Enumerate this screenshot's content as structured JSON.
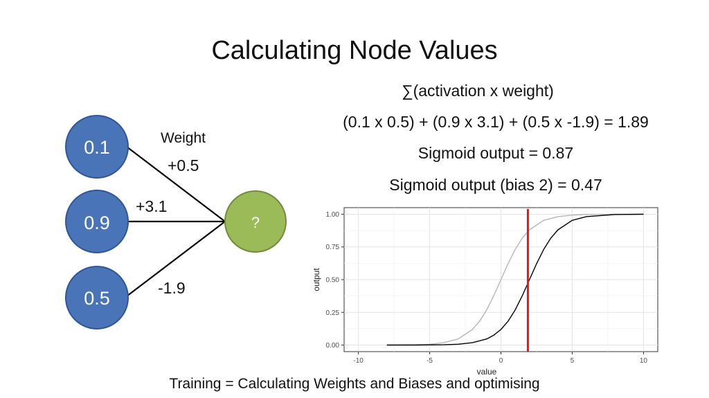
{
  "title": "Calculating Node Values",
  "formula": {
    "line1": "∑(activation x weight)",
    "line2": "(0.1 x 0.5) + (0.9 x 3.1) + (0.5 x -1.9) = 1.89",
    "line3": "Sigmoid output = 0.87",
    "line4": "Sigmoid output (bias 2) = 0.47"
  },
  "network": {
    "inputs": [
      "0.1",
      "0.9",
      "0.5"
    ],
    "output": "?",
    "weight_heading": "Weight",
    "weights": [
      "+0.5",
      "+3.1",
      "-1.9"
    ],
    "colors": {
      "input": "#4a74b8",
      "output": "#9bbb59"
    }
  },
  "caption": "Training = Calculating Weights and Biases and optimising",
  "chart_data": {
    "type": "line",
    "xlabel": "value",
    "ylabel": "output",
    "xlim": [
      -11,
      11
    ],
    "ylim": [
      -0.05,
      1.05
    ],
    "xticks": [
      -10,
      -5,
      0,
      5,
      10
    ],
    "yticks": [
      0.0,
      0.25,
      0.5,
      0.75,
      1.0
    ],
    "ytick_labels": [
      "0.00",
      "0.25",
      "0.50",
      "0.75",
      "1.00"
    ],
    "grid": true,
    "series": [
      {
        "color": "#b5b5b5",
        "x": [
          -8,
          -6,
          -5,
          -4,
          -3,
          -2,
          -1.5,
          -1,
          -0.5,
          0,
          0.5,
          1,
          1.5,
          2,
          3,
          4,
          5,
          6,
          8,
          10
        ],
        "y": [
          0.0003,
          0.0025,
          0.0067,
          0.018,
          0.047,
          0.119,
          0.182,
          0.269,
          0.378,
          0.5,
          0.622,
          0.731,
          0.818,
          0.881,
          0.953,
          0.982,
          0.993,
          0.998,
          0.9997,
          1.0
        ]
      },
      {
        "color": "#000000",
        "x": [
          -8,
          -6,
          -4,
          -3,
          -2,
          -1,
          -0.5,
          0,
          0.5,
          1,
          1.5,
          2,
          2.5,
          3,
          3.5,
          4,
          5,
          6,
          8,
          10
        ],
        "y": [
          5e-05,
          0.0003,
          0.0025,
          0.0067,
          0.018,
          0.047,
          0.076,
          0.119,
          0.182,
          0.269,
          0.378,
          0.5,
          0.622,
          0.731,
          0.818,
          0.881,
          0.953,
          0.982,
          0.9975,
          0.9997
        ]
      }
    ],
    "vline": {
      "x": 1.89,
      "color": "#e8141b"
    }
  }
}
